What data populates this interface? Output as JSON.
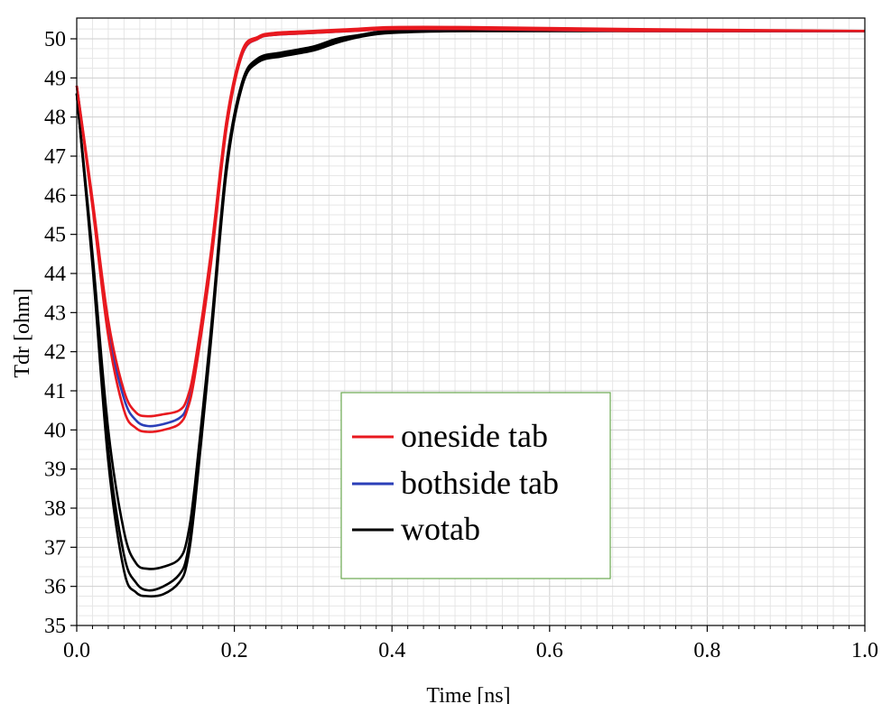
{
  "colors": {
    "background": "#ffffff",
    "grid_minor": "#e6e6e6",
    "grid_major": "#cfcfcf",
    "axis": "#000000",
    "legend_border": "#6aa84f"
  },
  "chart_data": {
    "type": "line",
    "xlabel": "Time [ns]",
    "ylabel": "Tdr [ohm]",
    "xlim": [
      0.0,
      1.0
    ],
    "ylim": [
      35,
      50.5
    ],
    "x_ticks": [
      "0.0",
      "0.2",
      "0.4",
      "0.6",
      "0.8",
      "1.0"
    ],
    "y_ticks": [
      "35",
      "36",
      "37",
      "38",
      "39",
      "40",
      "41",
      "42",
      "43",
      "44",
      "45",
      "46",
      "47",
      "48",
      "49",
      "50"
    ],
    "grid": true,
    "legend_placement": "lower-center",
    "legend": [
      {
        "label": "oneside tab",
        "color": "#e8191f"
      },
      {
        "label": "bothside tab",
        "color": "#2b3fb8"
      },
      {
        "label": "wotab",
        "color": "#000000"
      }
    ],
    "series": [
      {
        "name": "wotab",
        "color": "#000000",
        "x": [
          0,
          0.02,
          0.04,
          0.06,
          0.075,
          0.09,
          0.11,
          0.13,
          0.14,
          0.15,
          0.17,
          0.19,
          0.21,
          0.23,
          0.26,
          0.3,
          0.33,
          0.36,
          0.4,
          0.5,
          0.7,
          1.0
        ],
        "y": [
          48.6,
          44.5,
          40.0,
          37.4,
          36.6,
          36.45,
          36.5,
          36.7,
          37.2,
          38.6,
          42.5,
          46.8,
          48.9,
          49.5,
          49.65,
          49.8,
          50.0,
          50.1,
          50.2,
          50.2,
          50.2,
          50.2
        ]
      },
      {
        "name": "wotab",
        "color": "#000000",
        "x": [
          0,
          0.02,
          0.04,
          0.06,
          0.075,
          0.09,
          0.11,
          0.13,
          0.14,
          0.15,
          0.17,
          0.19,
          0.21,
          0.23,
          0.26,
          0.3,
          0.33,
          0.36,
          0.4,
          0.5,
          0.7,
          1.0
        ],
        "y": [
          48.6,
          44.3,
          39.5,
          36.8,
          36.1,
          35.9,
          36.0,
          36.3,
          36.8,
          38.3,
          42.3,
          46.7,
          48.8,
          49.45,
          49.6,
          49.75,
          49.95,
          50.1,
          50.2,
          50.2,
          50.2,
          50.2
        ]
      },
      {
        "name": "wotab",
        "color": "#000000",
        "x": [
          0,
          0.02,
          0.04,
          0.06,
          0.075,
          0.09,
          0.11,
          0.13,
          0.14,
          0.15,
          0.17,
          0.19,
          0.21,
          0.23,
          0.26,
          0.3,
          0.33,
          0.36,
          0.4,
          0.5,
          0.7,
          1.0
        ],
        "y": [
          48.6,
          44.2,
          39.2,
          36.4,
          35.85,
          35.75,
          35.8,
          36.1,
          36.6,
          38.1,
          42.2,
          46.6,
          48.8,
          49.4,
          49.55,
          49.7,
          49.9,
          50.05,
          50.15,
          50.2,
          50.2,
          50.2
        ]
      },
      {
        "name": "bothside tab",
        "color": "#2b3fb8",
        "x": [
          0,
          0.02,
          0.04,
          0.06,
          0.075,
          0.09,
          0.11,
          0.13,
          0.14,
          0.15,
          0.17,
          0.19,
          0.21,
          0.23,
          0.25,
          0.3,
          0.35,
          0.4,
          0.5,
          0.7,
          1.0
        ],
        "y": [
          48.8,
          45.8,
          42.6,
          40.8,
          40.25,
          40.1,
          40.15,
          40.3,
          40.6,
          41.5,
          44.3,
          47.8,
          49.6,
          50.0,
          50.1,
          50.15,
          50.2,
          50.25,
          50.25,
          50.2,
          50.2
        ]
      },
      {
        "name": "oneside tab",
        "color": "#e8191f",
        "x": [
          0,
          0.02,
          0.04,
          0.06,
          0.075,
          0.09,
          0.11,
          0.13,
          0.14,
          0.15,
          0.17,
          0.19,
          0.21,
          0.23,
          0.25,
          0.3,
          0.35,
          0.4,
          0.5,
          0.7,
          1.0
        ],
        "y": [
          48.8,
          45.9,
          42.8,
          41.0,
          40.45,
          40.35,
          40.4,
          40.5,
          40.8,
          41.7,
          44.5,
          47.9,
          49.7,
          50.05,
          50.15,
          50.2,
          50.25,
          50.3,
          50.3,
          50.25,
          50.2
        ]
      },
      {
        "name": "oneside tab",
        "color": "#e8191f",
        "x": [
          0,
          0.02,
          0.04,
          0.06,
          0.075,
          0.09,
          0.11,
          0.13,
          0.14,
          0.15,
          0.17,
          0.19,
          0.21,
          0.23,
          0.25,
          0.3,
          0.35,
          0.4,
          0.5,
          0.7,
          1.0
        ],
        "y": [
          48.8,
          45.7,
          42.4,
          40.5,
          40.05,
          39.95,
          40.0,
          40.15,
          40.5,
          41.4,
          44.2,
          47.7,
          49.6,
          50.0,
          50.1,
          50.15,
          50.2,
          50.25,
          50.25,
          50.2,
          50.2
        ]
      }
    ]
  }
}
